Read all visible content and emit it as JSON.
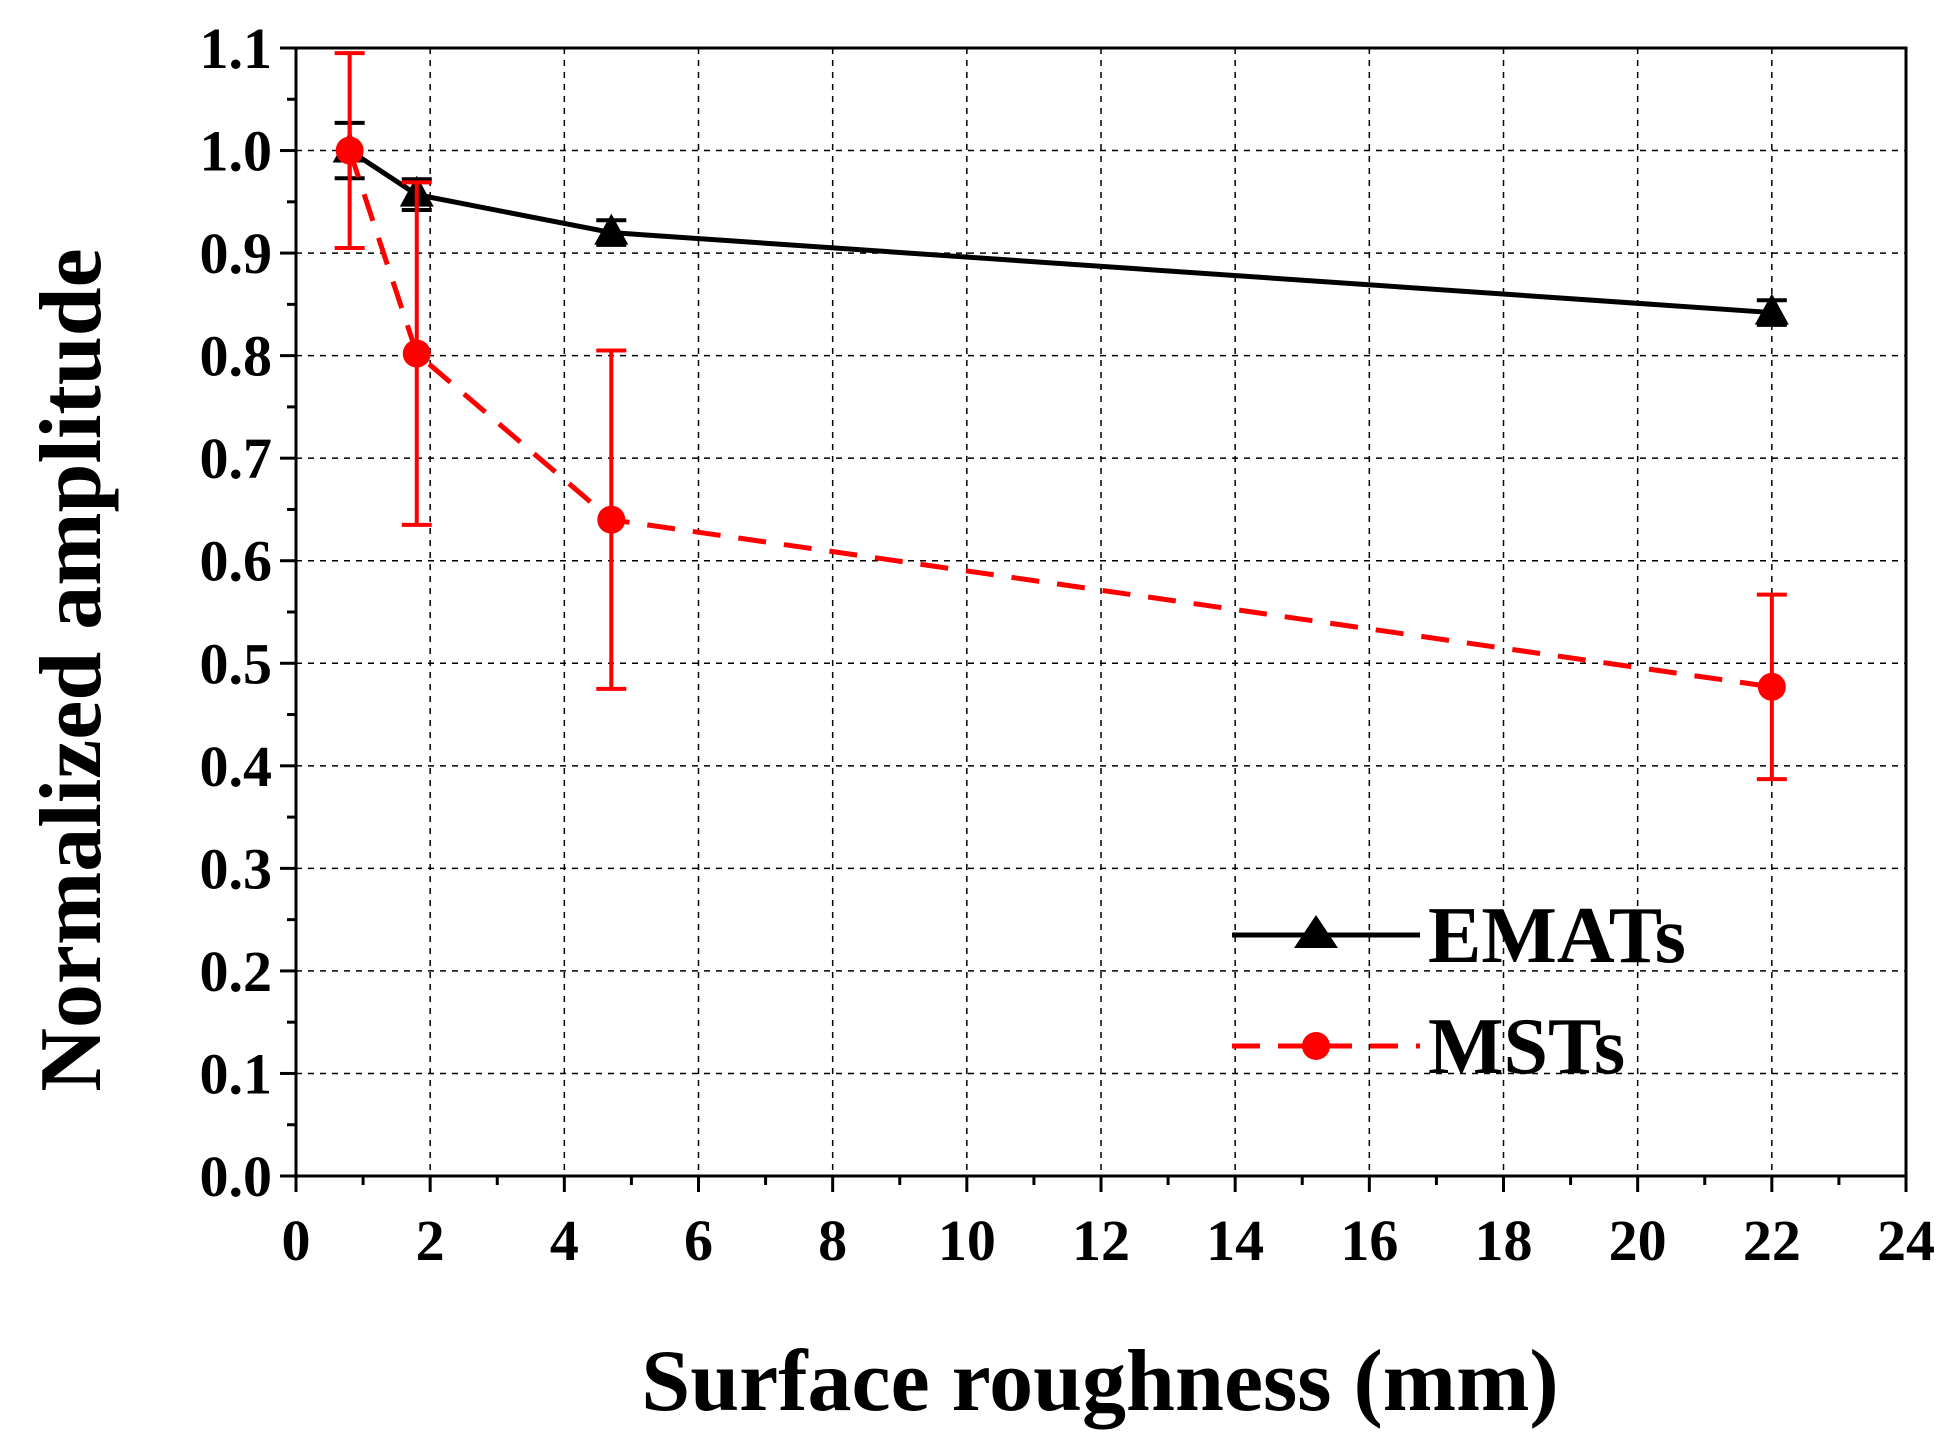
{
  "chart_data": {
    "type": "line",
    "title": "",
    "xlabel": "Surface roughness (mm)",
    "ylabel": "Normalized amplitude",
    "xlim": [
      0,
      24
    ],
    "ylim": [
      0.0,
      1.1
    ],
    "xticks": [
      0,
      2,
      4,
      6,
      8,
      10,
      12,
      14,
      16,
      18,
      20,
      22,
      24
    ],
    "xtick_labels": [
      "0",
      "2",
      "4",
      "6",
      "8",
      "10",
      "12",
      "14",
      "16",
      "18",
      "20",
      "22",
      "24"
    ],
    "yticks": [
      0.0,
      0.1,
      0.2,
      0.3,
      0.4,
      0.5,
      0.6,
      0.7,
      0.8,
      0.9,
      1.0,
      1.1
    ],
    "ytick_labels": [
      "0.0",
      "0.1",
      "0.2",
      "0.3",
      "0.4",
      "0.5",
      "0.6",
      "0.7",
      "0.8",
      "0.9",
      "1.0",
      "1.1"
    ],
    "grid": true,
    "legend_position": "bottom-right",
    "series": [
      {
        "name": "EMATs",
        "color": "#000000",
        "line_style": "solid",
        "marker": "triangle",
        "x": [
          0.8,
          1.8,
          4.7,
          22.0
        ],
        "y": [
          1.0,
          0.957,
          0.92,
          0.842
        ],
        "err": [
          0.027,
          0.015,
          0.012,
          0.012
        ]
      },
      {
        "name": "MSTs",
        "color": "#ff0000",
        "line_style": "dashed",
        "marker": "circle",
        "x": [
          0.8,
          1.8,
          4.7,
          22.0
        ],
        "y": [
          1.0,
          0.802,
          0.64,
          0.477
        ],
        "err": [
          0.095,
          0.167,
          0.165,
          0.09
        ]
      }
    ]
  }
}
